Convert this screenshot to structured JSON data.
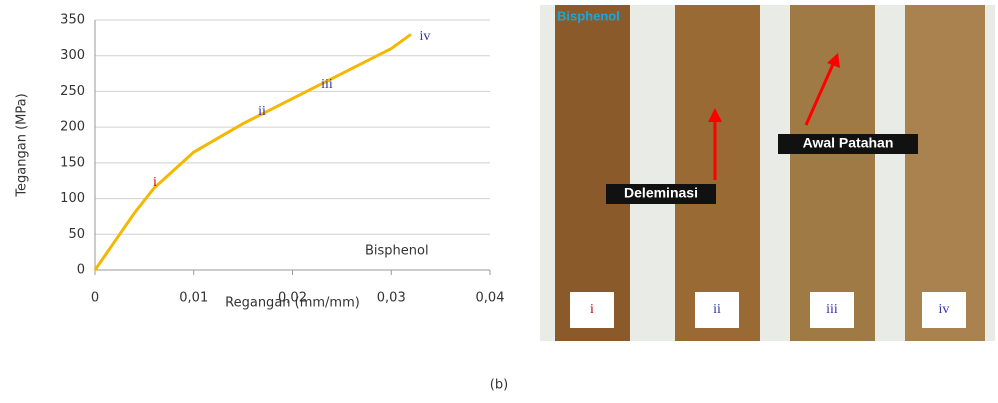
{
  "chart_data": {
    "type": "line",
    "x_label": "Regangan (mm/mm)",
    "y_label": "Tegangan (MPa)",
    "x": [
      0,
      0.002,
      0.004,
      0.006,
      0.008,
      0.01,
      0.015,
      0.02,
      0.025,
      0.03,
      0.032
    ],
    "series": [
      {
        "name": "Bisphenol",
        "color": "#f5b800",
        "values": [
          0,
          40,
          80,
          115,
          140,
          165,
          205,
          240,
          275,
          310,
          330
        ]
      }
    ],
    "annotations": [
      "i",
      "ii",
      "iii",
      "iv"
    ],
    "xlim": [
      0,
      0.04
    ],
    "xticks": [
      0,
      {
        "value": 0.01,
        "label": "0,01"
      },
      {
        "value": 0.02,
        "label": "0,02"
      },
      {
        "value": 0.03,
        "label": "0,03"
      },
      {
        "value": 0.04,
        "label": "0,04"
      }
    ],
    "ylim": [
      0,
      350
    ],
    "yticks": [
      0,
      50,
      100,
      150,
      200,
      250,
      300,
      350
    ],
    "grid": true
  },
  "photo_panel": {
    "title": "Bisphenol",
    "labels": [
      "i",
      "ii",
      "iii",
      "iv"
    ],
    "annotations": [
      "Deleminasi",
      "Awal Patahan"
    ]
  },
  "caption": "(b)"
}
